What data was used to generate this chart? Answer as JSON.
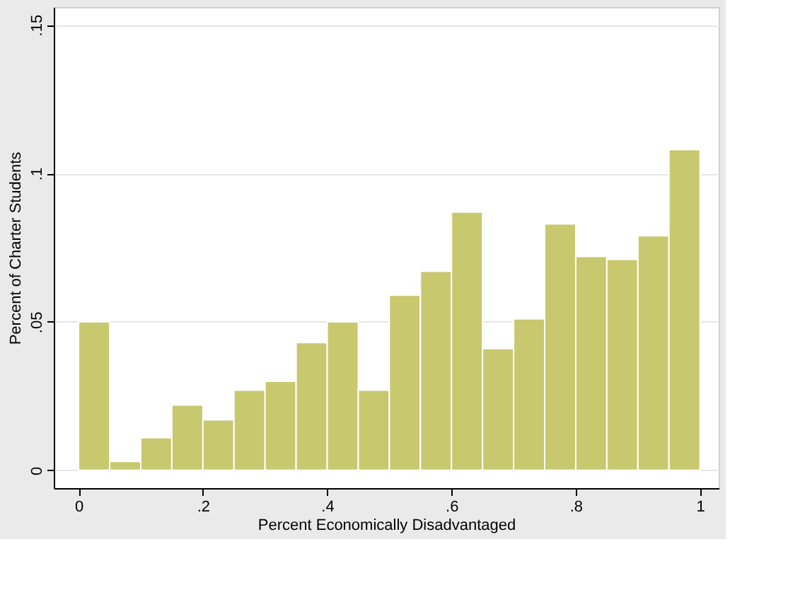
{
  "chart_data": {
    "type": "histogram",
    "xlabel": "Percent Economically Disadvantaged",
    "ylabel": "Percent of Charter Students",
    "bins": [
      0,
      0.05,
      0.1,
      0.15,
      0.2,
      0.25,
      0.3,
      0.35,
      0.4,
      0.45,
      0.5,
      0.55,
      0.6,
      0.65,
      0.7,
      0.75,
      0.8,
      0.85,
      0.9,
      0.95,
      1
    ],
    "values": [
      0.05,
      0.003,
      0.011,
      0.022,
      0.017,
      0.027,
      0.03,
      0.043,
      0.05,
      0.027,
      0.059,
      0.067,
      0.087,
      0.041,
      0.051,
      0.083,
      0.072,
      0.071,
      0.079,
      0.108
    ],
    "color": "#c8c86e",
    "xlim": [
      -0.04,
      1.03
    ],
    "ylim": [
      -0.006,
      0.156
    ],
    "xticks": [
      0,
      {
        "value": 0.2,
        "label": ".2"
      },
      {
        "value": 0.4,
        "label": ".4"
      },
      {
        "value": 0.6,
        "label": ".6"
      },
      {
        "value": 0.8,
        "label": ".8"
      },
      1
    ],
    "yticks": [
      0,
      {
        "value": 0.05,
        "label": ".05"
      },
      {
        "value": 0.1,
        "label": ".1"
      },
      {
        "value": 0.15,
        "label": ".15"
      }
    ],
    "grid": "y"
  }
}
